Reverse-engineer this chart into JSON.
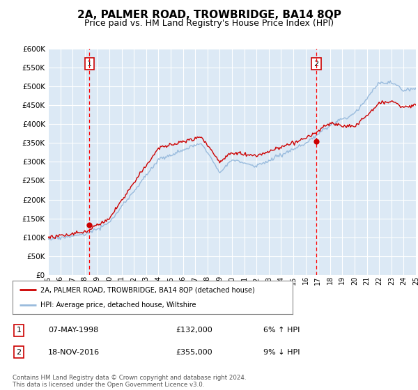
{
  "title": "2A, PALMER ROAD, TROWBRIDGE, BA14 8QP",
  "subtitle": "Price paid vs. HM Land Registry's House Price Index (HPI)",
  "title_fontsize": 11,
  "subtitle_fontsize": 9,
  "ylabel_ticks": [
    "£0",
    "£50K",
    "£100K",
    "£150K",
    "£200K",
    "£250K",
    "£300K",
    "£350K",
    "£400K",
    "£450K",
    "£500K",
    "£550K",
    "£600K"
  ],
  "ytick_values": [
    0,
    50000,
    100000,
    150000,
    200000,
    250000,
    300000,
    350000,
    400000,
    450000,
    500000,
    550000,
    600000
  ],
  "x_start_year": 1995,
  "x_end_year": 2025,
  "background_color": "#dce9f5",
  "grid_color": "#ffffff",
  "line_color_red": "#cc0000",
  "line_color_blue": "#99bbdd",
  "sale1_year": 1998.38,
  "sale1_price": 132000,
  "sale2_year": 2016.88,
  "sale2_price": 355000,
  "legend_label1": "2A, PALMER ROAD, TROWBRIDGE, BA14 8QP (detached house)",
  "legend_label2": "HPI: Average price, detached house, Wiltshire",
  "sale1_label": "1",
  "sale2_label": "2",
  "sale1_date": "07-MAY-1998",
  "sale1_amount": "£132,000",
  "sale1_hpi": "6% ↑ HPI",
  "sale2_date": "18-NOV-2016",
  "sale2_amount": "£355,000",
  "sale2_hpi": "9% ↓ HPI",
  "footer": "Contains HM Land Registry data © Crown copyright and database right 2024.\nThis data is licensed under the Open Government Licence v3.0."
}
